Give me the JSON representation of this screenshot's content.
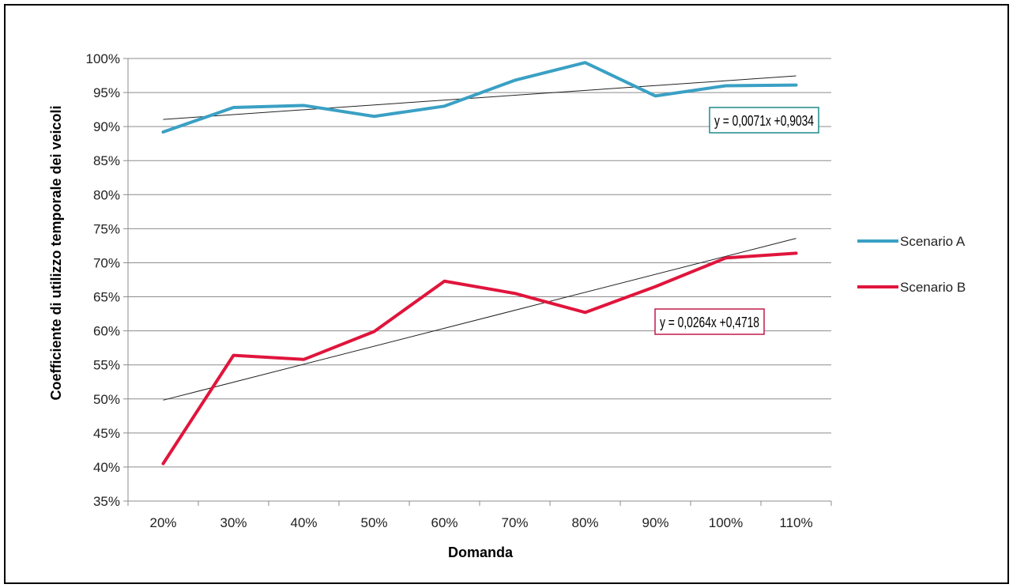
{
  "chart_data": {
    "type": "line",
    "categories": [
      "20%",
      "30%",
      "40%",
      "50%",
      "60%",
      "70%",
      "80%",
      "90%",
      "100%",
      "110%"
    ],
    "xlabel": "Domanda",
    "ylabel": "Coefficiente di utilizzo temporale dei veicoli",
    "ylim": [
      0.35,
      1.0
    ],
    "yticks": [
      0.35,
      0.4,
      0.45,
      0.5,
      0.55,
      0.6,
      0.65,
      0.7,
      0.75,
      0.8,
      0.85,
      0.9,
      0.95,
      1.0
    ],
    "ytick_labels": [
      "35%",
      "40%",
      "45%",
      "50%",
      "55%",
      "60%",
      "65%",
      "70%",
      "75%",
      "80%",
      "85%",
      "90%",
      "95%",
      "100%"
    ],
    "grid": "horizontal",
    "legend_position": "right",
    "series": [
      {
        "name": "Scenario A",
        "color": "#3aa0c4",
        "values": [
          0.892,
          0.928,
          0.931,
          0.915,
          0.93,
          0.968,
          0.994,
          0.945,
          0.96,
          0.961
        ],
        "trendline": {
          "slope": 0.0071,
          "intercept": 0.9034,
          "label": "y = 0,0071x +0,9034",
          "border_color": "#1f8a8a"
        }
      },
      {
        "name": "Scenario B",
        "color": "#e0153c",
        "values": [
          0.405,
          0.564,
          0.558,
          0.599,
          0.673,
          0.655,
          0.627,
          0.665,
          0.707,
          0.714
        ],
        "trendline": {
          "slope": 0.0264,
          "intercept": 0.4718,
          "label": "y = 0,0264x +0,4718",
          "border_color": "#c21a4a"
        }
      }
    ]
  }
}
